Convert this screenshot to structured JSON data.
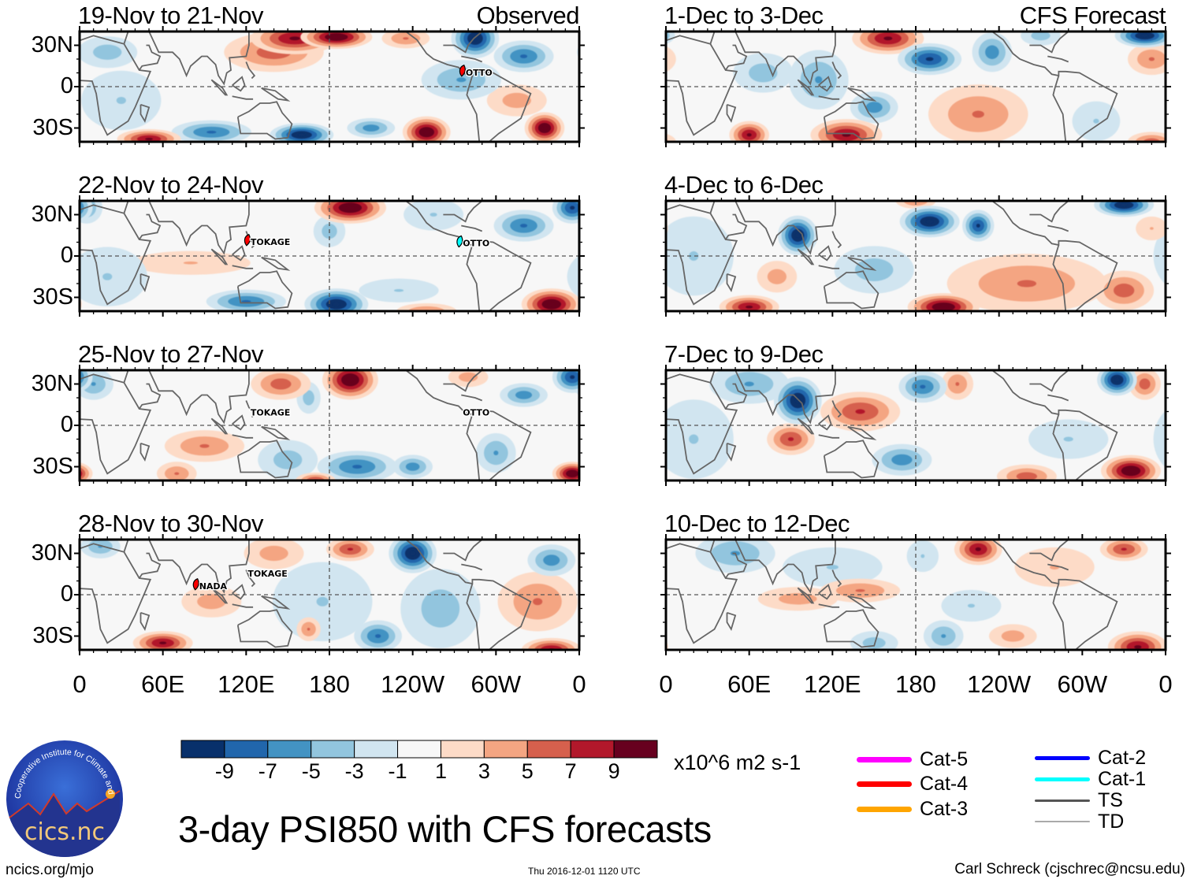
{
  "title": "3-day PSI850 with CFS forecasts",
  "footer": {
    "site": "ncics.org/mjo",
    "timestamp": "Thu 2016-12-01 1120 UTC",
    "author": "Carl Schreck (cjschrec@ncsu.edu)"
  },
  "logo": {
    "text": "cics.nc",
    "ring_text": "Cooperative Institute for Climate and Satellites"
  },
  "column_labels": {
    "left": "Observed",
    "right": "CFS Forecast"
  },
  "colorbar": {
    "units": "x10^6 m2 s-1",
    "levels": [
      -9,
      -7,
      -5,
      -3,
      -1,
      1,
      3,
      5,
      7,
      9
    ],
    "labels": [
      "-9",
      "-7",
      "-5",
      "-3",
      "-1",
      "1",
      "3",
      "5",
      "7",
      "9"
    ],
    "colors": [
      "#08306b",
      "#2166ac",
      "#4393c3",
      "#92c5de",
      "#d1e5f0",
      "#f7f7f7",
      "#fddbc7",
      "#f4a582",
      "#d6604d",
      "#b2182b",
      "#67001f"
    ]
  },
  "storm_legend": [
    {
      "label": "Cat-5",
      "color": "#ff00ff"
    },
    {
      "label": "Cat-4",
      "color": "#ff0000"
    },
    {
      "label": "Cat-3",
      "color": "#ffa500"
    },
    {
      "label": "Cat-2",
      "color": "#0000ff"
    },
    {
      "label": "Cat-1",
      "color": "#00ffff"
    },
    {
      "label": "TS",
      "color": "#555555"
    },
    {
      "label": "TD",
      "color": "#aaaaaa"
    }
  ],
  "chart_data": {
    "type": "heatmap",
    "variable": "PSI850 anomaly",
    "units": "x10^6 m2 s-1",
    "xlim": [
      0,
      360
    ],
    "ylim": [
      -40,
      40
    ],
    "x_ticks": [
      "0",
      "60E",
      "120E",
      "180",
      "120W",
      "60W",
      "0"
    ],
    "y_ticks": [
      "30N",
      "0",
      "30S"
    ],
    "panels": [
      {
        "title": "19-Nov to 21-Nov",
        "tag": "Observed",
        "storms": [
          {
            "name": "OTTO",
            "lon": 277,
            "lat": 11,
            "cat": "Cat-4"
          }
        ],
        "blobs": [
          [
            155,
            35,
            9,
            22,
            8
          ],
          [
            185,
            36,
            11,
            18,
            6
          ],
          [
            140,
            25,
            6,
            25,
            10
          ],
          [
            95,
            -33,
            -7,
            20,
            6
          ],
          [
            50,
            -38,
            9,
            16,
            5
          ],
          [
            160,
            -35,
            -11,
            16,
            6
          ],
          [
            210,
            -30,
            -6,
            12,
            5
          ],
          [
            250,
            -33,
            11,
            12,
            8
          ],
          [
            335,
            -30,
            11,
            10,
            8
          ],
          [
            285,
            35,
            -11,
            12,
            10
          ],
          [
            320,
            22,
            -7,
            15,
            8
          ],
          [
            275,
            5,
            -5,
            20,
            10
          ],
          [
            315,
            -10,
            4,
            15,
            8
          ],
          [
            20,
            25,
            -4,
            15,
            8
          ],
          [
            30,
            -10,
            -3,
            20,
            15
          ],
          [
            235,
            35,
            5,
            12,
            5
          ]
        ]
      },
      {
        "title": "22-Nov to 24-Nov",
        "tag": "",
        "storms": [
          {
            "name": "TOKAGE",
            "lon": 122,
            "lat": 11,
            "cat": "Cat-4"
          },
          {
            "name": "OTTO",
            "lon": 275,
            "lat": 10,
            "cat": "Cat-1"
          }
        ],
        "blobs": [
          [
            195,
            35,
            11,
            18,
            8
          ],
          [
            185,
            -35,
            -11,
            16,
            8
          ],
          [
            120,
            -33,
            -7,
            20,
            6
          ],
          [
            340,
            -35,
            11,
            15,
            8
          ],
          [
            320,
            22,
            -7,
            15,
            8
          ],
          [
            355,
            35,
            -9,
            10,
            8
          ],
          [
            180,
            18,
            -4,
            8,
            8
          ],
          [
            80,
            -5,
            3,
            30,
            6
          ],
          [
            230,
            -25,
            -3,
            20,
            6
          ],
          [
            20,
            -15,
            -3,
            20,
            15
          ],
          [
            5,
            35,
            -5,
            8,
            8
          ],
          [
            250,
            -40,
            5,
            15,
            4
          ],
          [
            255,
            30,
            -3,
            15,
            8
          ]
        ]
      },
      {
        "title": "25-Nov to 27-Nov",
        "tag": "",
        "storms": [
          {
            "name": "TOKAGE",
            "lon": 122,
            "lat": 10,
            "cat": ""
          },
          {
            "name": "OTTO",
            "lon": 275,
            "lat": 10,
            "cat": ""
          }
        ],
        "blobs": [
          [
            195,
            33,
            11,
            14,
            10
          ],
          [
            145,
            30,
            6,
            15,
            8
          ],
          [
            165,
            20,
            -4,
            6,
            8
          ],
          [
            90,
            -15,
            5,
            20,
            8
          ],
          [
            200,
            -30,
            -7,
            20,
            8
          ],
          [
            240,
            -30,
            -6,
            10,
            6
          ],
          [
            300,
            -20,
            -5,
            10,
            10
          ],
          [
            355,
            -35,
            11,
            10,
            6
          ],
          [
            355,
            35,
            -9,
            10,
            8
          ],
          [
            320,
            22,
            -6,
            12,
            6
          ],
          [
            150,
            -25,
            -4,
            15,
            10
          ],
          [
            70,
            -35,
            5,
            10,
            6
          ],
          [
            170,
            -40,
            7,
            10,
            4
          ],
          [
            280,
            35,
            4,
            10,
            5
          ],
          [
            10,
            30,
            -5,
            10,
            8
          ]
        ]
      },
      {
        "title": "28-Nov to 30-Nov",
        "tag": "",
        "storms": [
          {
            "name": "NADA",
            "lon": 85,
            "lat": 7,
            "cat": "Cat-4"
          },
          {
            "name": "TOKAGE",
            "lon": 120,
            "lat": 16,
            "cat": ""
          }
        ],
        "blobs": [
          [
            60,
            -35,
            9,
            15,
            6
          ],
          [
            195,
            33,
            7,
            12,
            6
          ],
          [
            240,
            30,
            -11,
            12,
            10
          ],
          [
            215,
            -30,
            -7,
            12,
            8
          ],
          [
            175,
            -5,
            -3,
            25,
            20
          ],
          [
            165,
            -25,
            5,
            6,
            6
          ],
          [
            340,
            -40,
            9,
            15,
            6
          ],
          [
            330,
            -5,
            5,
            20,
            15
          ],
          [
            95,
            -5,
            4,
            15,
            8
          ],
          [
            340,
            25,
            -6,
            12,
            8
          ],
          [
            15,
            35,
            -5,
            10,
            6
          ],
          [
            140,
            30,
            4,
            15,
            8
          ],
          [
            260,
            -10,
            -4,
            20,
            20
          ]
        ]
      },
      {
        "title": "1-Dec to 3-Dec",
        "tag": "CFS Forecast",
        "storms": [],
        "blobs": [
          [
            160,
            35,
            9,
            18,
            8
          ],
          [
            190,
            20,
            -9,
            16,
            8
          ],
          [
            235,
            25,
            -6,
            10,
            10
          ],
          [
            345,
            37,
            -11,
            15,
            6
          ],
          [
            130,
            -35,
            9,
            18,
            8
          ],
          [
            60,
            -35,
            9,
            10,
            7
          ],
          [
            110,
            5,
            -5,
            15,
            15
          ],
          [
            150,
            -15,
            -6,
            12,
            8
          ],
          [
            350,
            20,
            5,
            12,
            8
          ],
          [
            225,
            -20,
            5,
            25,
            15
          ],
          [
            70,
            10,
            -4,
            15,
            10
          ],
          [
            310,
            -25,
            -3,
            12,
            10
          ],
          [
            270,
            37,
            -4,
            10,
            5
          ],
          [
            350,
            -40,
            6,
            12,
            5
          ]
        ]
      },
      {
        "title": "4-Dec to 6-Dec",
        "tag": "",
        "storms": [],
        "blobs": [
          [
            95,
            15,
            -11,
            10,
            10
          ],
          [
            190,
            25,
            -11,
            15,
            8
          ],
          [
            225,
            22,
            -9,
            8,
            8
          ],
          [
            330,
            37,
            -11,
            15,
            6
          ],
          [
            200,
            -37,
            11,
            18,
            7
          ],
          [
            60,
            -37,
            9,
            15,
            6
          ],
          [
            260,
            -20,
            5,
            40,
            15
          ],
          [
            330,
            -25,
            6,
            15,
            10
          ],
          [
            150,
            -10,
            -4,
            20,
            12
          ],
          [
            20,
            0,
            -3,
            20,
            20
          ],
          [
            80,
            -15,
            4,
            10,
            8
          ],
          [
            350,
            20,
            3,
            8,
            6
          ],
          [
            180,
            40,
            5,
            10,
            4
          ]
        ]
      },
      {
        "title": "7-Dec to 9-Dec",
        "tag": "",
        "storms": [],
        "blobs": [
          [
            95,
            18,
            -11,
            12,
            12
          ],
          [
            60,
            30,
            -5,
            20,
            10
          ],
          [
            185,
            28,
            -7,
            12,
            8
          ],
          [
            325,
            33,
            -11,
            10,
            8
          ],
          [
            345,
            30,
            6,
            8,
            8
          ],
          [
            140,
            10,
            7,
            20,
            10
          ],
          [
            90,
            -10,
            7,
            12,
            8
          ],
          [
            170,
            -25,
            -6,
            15,
            8
          ],
          [
            335,
            -33,
            11,
            15,
            8
          ],
          [
            260,
            -37,
            6,
            15,
            6
          ],
          [
            210,
            30,
            5,
            8,
            8
          ],
          [
            20,
            -10,
            -3,
            20,
            20
          ],
          [
            290,
            -10,
            -3,
            20,
            10
          ]
        ]
      },
      {
        "title": "10-Dec to 12-Dec",
        "tag": "",
        "storms": [],
        "blobs": [
          [
            225,
            33,
            9,
            12,
            8
          ],
          [
            330,
            33,
            7,
            12,
            6
          ],
          [
            50,
            30,
            -5,
            20,
            10
          ],
          [
            120,
            20,
            -3,
            25,
            10
          ],
          [
            95,
            -3,
            4,
            20,
            6
          ],
          [
            140,
            3,
            5,
            20,
            6
          ],
          [
            185,
            28,
            -3,
            8,
            8
          ],
          [
            200,
            -30,
            -5,
            10,
            8
          ],
          [
            340,
            -38,
            9,
            15,
            8
          ],
          [
            250,
            -30,
            4,
            12,
            6
          ],
          [
            220,
            -8,
            -3,
            15,
            8
          ],
          [
            150,
            -35,
            -4,
            12,
            6
          ],
          [
            280,
            20,
            3,
            20,
            10
          ]
        ]
      }
    ]
  }
}
